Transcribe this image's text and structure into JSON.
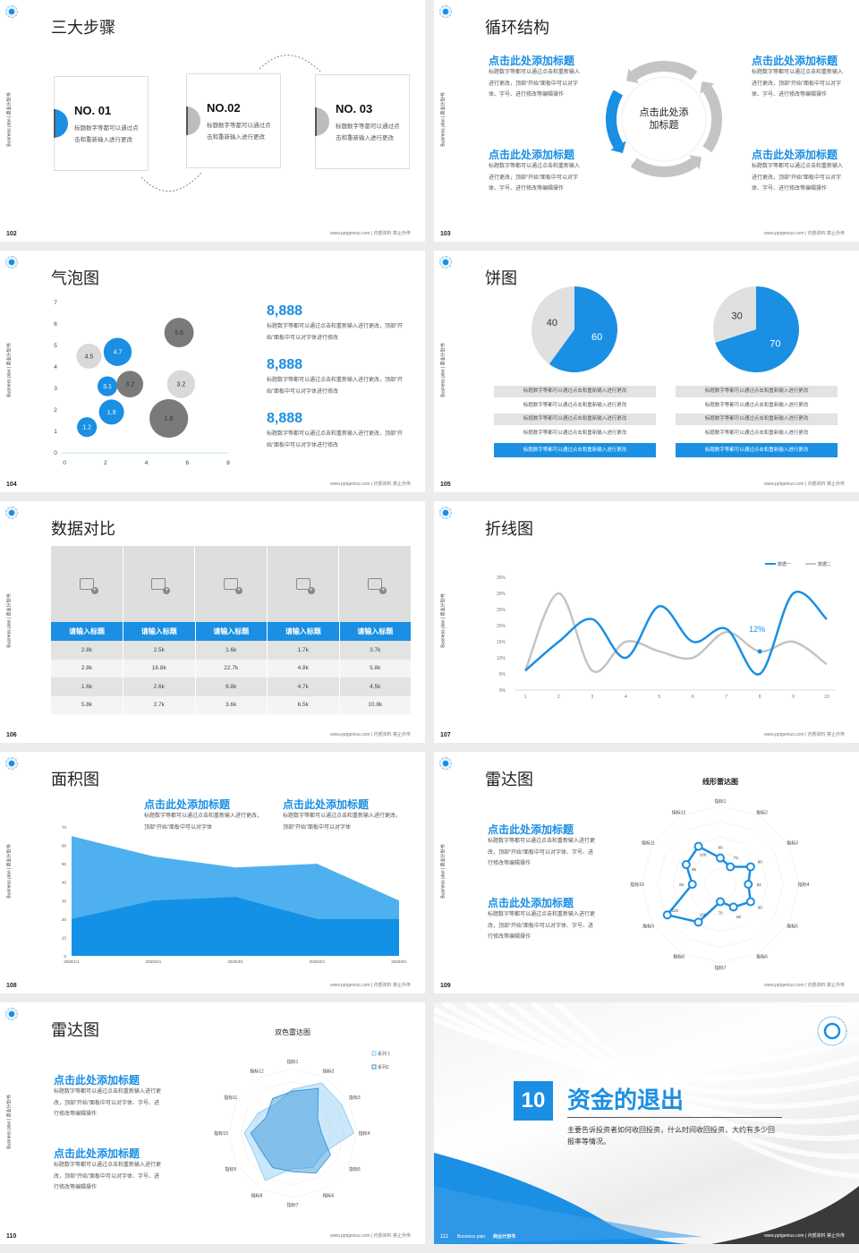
{
  "common": {
    "vertical_label": "Business plan | 商业计划书",
    "footer": "www.pptgenius.com | 内部资料 禁止外传"
  },
  "colors": {
    "accent": "#1a8fe3",
    "light_blue": "#4fb0ef",
    "gray": "#c4c4c4",
    "dark_gray": "#7a7a7a",
    "background": "#ececec"
  },
  "slides": [
    {
      "page": "102",
      "title": "三大步骤",
      "steps": [
        {
          "label": "NO. 01",
          "text": "标题数字等都可以通过点击和重新输入进行更改"
        },
        {
          "label": "NO.02",
          "text": "标题数字等都可以通过点击和重新输入进行更改"
        },
        {
          "label": "NO. 03",
          "text": "标题数字等都可以通过点击和重新输入进行更改"
        }
      ]
    },
    {
      "page": "103",
      "title": "循环结构",
      "center": "点击此处添加标题",
      "blocks": [
        {
          "heading": "点击此处添加标题",
          "text": "标题数字等都可以通过点击和重新输入进行更改，顶部“开始”面板中可以对字体、字号、进行修改等编辑操作"
        },
        {
          "heading": "点击此处添加标题",
          "text": "标题数字等都可以通过点击和重新输入进行更改，顶部“开始”面板中可以对字体、字号、进行修改等编辑操作"
        },
        {
          "heading": "点击此处添加标题",
          "text": "标题数字等都可以通过点击和重新输入进行更改，顶部“开始”面板中可以对字体、字号、进行修改等编辑操作"
        },
        {
          "heading": "点击此处添加标题",
          "text": "标题数字等都可以通过点击和重新输入进行更改，顶部“开始”面板中可以对字体、字号、进行修改等编辑操作"
        }
      ]
    },
    {
      "page": "104",
      "title": "气泡图",
      "stats": [
        {
          "value": "8,888",
          "text": "标题数字等都可以通过点击和重新输入进行更改，顶部“开始”面板中可以对字体进行修改"
        },
        {
          "value": "8,888",
          "text": "标题数字等都可以通过点击和重新输入进行更改，顶部“开始”面板中可以对字体进行修改"
        },
        {
          "value": "8,888",
          "text": "标题数字等都可以通过点击和重新输入进行更改，顶部“开始”面板中可以对字体进行修改"
        }
      ]
    },
    {
      "page": "105",
      "title": "饼图",
      "lists": [
        [
          "标题数字等都可以通过点击和重新输入进行更改",
          "标题数字等都可以通过点击和重新输入进行更改",
          "标题数字等都可以通过点击和重新输入进行更改",
          "标题数字等都可以通过点击和重新输入进行更改",
          "标题数字等都可以通过点击和重新输入进行更改"
        ],
        [
          "标题数字等都可以通过点击和重新输入进行更改",
          "标题数字等都可以通过点击和重新输入进行更改",
          "标题数字等都可以通过点击和重新输入进行更改",
          "标题数字等都可以通过点击和重新输入进行更改",
          "标题数字等都可以通过点击和重新输入进行更改"
        ]
      ]
    },
    {
      "page": "106",
      "title": "数据对比"
    },
    {
      "page": "107",
      "title": "折线图"
    },
    {
      "page": "108",
      "title": "面积图",
      "blocks": [
        {
          "heading": "点击此处添加标题",
          "text": "标题数字等都可以通过点击和重新输入进行更改，顶部“开始”面板中可以对字体"
        },
        {
          "heading": "点击此处添加标题",
          "text": "标题数字等都可以通过点击和重新输入进行更改，顶部“开始”面板中可以对字体"
        }
      ]
    },
    {
      "page": "109",
      "title": "雷达图",
      "blocks": [
        {
          "heading": "点击此处添加标题",
          "text": "标题数字等都可以通过点击和重新输入进行更改，顶部“开始”面板中可以对字体、字号、进行修改等编辑操作"
        },
        {
          "heading": "点击此处添加标题",
          "text": "标题数字等都可以通过点击和重新输入进行更改，顶部“开始”面板中可以对字体、字号、进行修改等编辑操作"
        }
      ]
    },
    {
      "page": "110",
      "title": "雷达图",
      "blocks": [
        {
          "heading": "点击此处添加标题",
          "text": "标题数字等都可以通过点击和重新输入进行更改，顶部“开始”面板中可以对字体、字号、进行修改等编辑操作"
        },
        {
          "heading": "点击此处添加标题",
          "text": "标题数字等都可以通过点击和重新输入进行更改，顶部“开始”面板中可以对字体、字号、进行修改等编辑操作"
        }
      ]
    },
    {
      "page": "111",
      "section_number": "10",
      "title": "资金的退出",
      "description": "主要告诉投资者如何收回投资，什么时间收回投资，大约有多少回报率等情况。",
      "footer_left": "Business plan",
      "footer_brand": "商业计划书"
    }
  ],
  "chart_data": [
    {
      "type": "scatter",
      "subtype": "bubble",
      "xlim": [
        0,
        8
      ],
      "ylim": [
        0,
        7
      ],
      "xticks": [
        "0",
        "2",
        "4",
        "6",
        "8"
      ],
      "yticks": [
        "0",
        "1",
        "2",
        "3",
        "4",
        "5",
        "6",
        "7"
      ],
      "points": [
        {
          "x": 1.1,
          "y": 1.2,
          "size": 2.5,
          "label": "1.2",
          "color": "#1a8fe3"
        },
        {
          "x": 2.3,
          "y": 1.9,
          "size": 4,
          "label": "1.9",
          "color": "#1a8fe3"
        },
        {
          "x": 2.1,
          "y": 3.1,
          "size": 2.5,
          "label": "3.1",
          "color": "#1a8fe3"
        },
        {
          "x": 2.6,
          "y": 4.7,
          "size": 5,
          "label": "4.7",
          "color": "#1a8fe3"
        },
        {
          "x": 1.2,
          "y": 4.5,
          "size": 4,
          "label": "4.5",
          "color": "#d9d9d9"
        },
        {
          "x": 3.2,
          "y": 3.2,
          "size": 4.5,
          "label": "3.2",
          "color": "#7a7a7a"
        },
        {
          "x": 5.7,
          "y": 3.2,
          "size": 5,
          "label": "3.2",
          "color": "#d9d9d9"
        },
        {
          "x": 5.6,
          "y": 5.6,
          "size": 5.5,
          "label": "5.6",
          "color": "#7a7a7a"
        },
        {
          "x": 5.1,
          "y": 1.6,
          "size": 9.5,
          "label": "1.6",
          "color": "#7a7a7a"
        }
      ]
    },
    {
      "type": "pie",
      "values": [
        60,
        40
      ],
      "labels": [
        "60",
        "40"
      ],
      "colors": [
        "#1a8fe3",
        "#e0e0e0"
      ]
    },
    {
      "type": "pie",
      "values": [
        70,
        30
      ],
      "labels": [
        "70",
        "30"
      ],
      "colors": [
        "#1a8fe3",
        "#e0e0e0"
      ]
    },
    {
      "type": "table",
      "headers": [
        "请输入标题",
        "请输入标题",
        "请输入标题",
        "请输入标题",
        "请输入标题"
      ],
      "rows": [
        [
          "2.8k",
          "2.5k",
          "1.6k",
          "1.7k",
          "3.7k"
        ],
        [
          "2.8k",
          "16.8k",
          "22.7k",
          "4.8k",
          "5.8k"
        ],
        [
          "1.6k",
          "2.6k",
          "6.8k",
          "4.7k",
          "4.5k"
        ],
        [
          "5.8k",
          "2.7k",
          "3.6k",
          "6.5k",
          "10.8k"
        ]
      ]
    },
    {
      "type": "line",
      "smooth": true,
      "x": [
        1,
        2,
        3,
        4,
        5,
        6,
        7,
        8,
        9,
        10
      ],
      "yticks": [
        "0%",
        "5%",
        "10%",
        "15%",
        "20%",
        "25%",
        "30%",
        "35%"
      ],
      "ylim": [
        0,
        35
      ],
      "series": [
        {
          "name": "数据一",
          "color": "#1a8fe3",
          "values": [
            6,
            15,
            22,
            10,
            26,
            15,
            19,
            5,
            30,
            22
          ]
        },
        {
          "name": "数据二",
          "color": "#c4c4c4",
          "values": [
            6,
            30,
            6,
            15,
            12,
            10,
            18,
            12,
            15,
            8
          ]
        }
      ],
      "annotation": {
        "x": 8,
        "y": 12,
        "text": "12%"
      },
      "legend": "top-right"
    },
    {
      "type": "area",
      "categories": [
        "2020/1/1",
        "2020/2/1",
        "2020/3/1",
        "2020/4/1",
        "2020/5/1"
      ],
      "ylim": [
        0,
        70
      ],
      "yticks": [
        "0",
        "10",
        "20",
        "30",
        "40",
        "50",
        "60",
        "70"
      ],
      "series": [
        {
          "color": "#4fb0ef",
          "values": [
            65,
            54,
            48,
            50,
            30
          ]
        },
        {
          "color": "#1291e6",
          "values": [
            20,
            30,
            32,
            20,
            20
          ]
        }
      ]
    },
    {
      "type": "radar",
      "title": "线形雷达图",
      "axes": [
        "指标1",
        "指标2",
        "指标3",
        "指标4",
        "指标5",
        "指标6",
        "指标7",
        "指标8",
        "指标9",
        "指标10",
        "指标11",
        "指标12"
      ],
      "range": [
        50,
        140
      ],
      "values": [
        80,
        73,
        90,
        82,
        90,
        80,
        70,
        100,
        120,
        82,
        95,
        100
      ],
      "labels": [
        "80",
        "73",
        "90",
        "82",
        "90",
        "80",
        "70",
        "100",
        "120",
        "82",
        "95",
        "100"
      ]
    },
    {
      "type": "radar",
      "title": "双色雷达图",
      "filled": true,
      "range": [
        0,
        100
      ],
      "legend": "top-right",
      "axes": [
        "指标1",
        "指标2",
        "指标3",
        "指标4",
        "指标5",
        "指标6",
        "指标7",
        "指标8",
        "指标9",
        "指标10",
        "指标11",
        "指标12"
      ],
      "series": [
        {
          "name": "系列 1",
          "color": "#7cc6f2",
          "values": [
            68,
            90,
            88,
            95,
            58,
            62,
            55,
            85,
            68,
            75,
            62,
            52
          ]
        },
        {
          "name": "系列2",
          "color": "#2a8fd8",
          "values": [
            65,
            80,
            45,
            45,
            68,
            72,
            60,
            62,
            56,
            65,
            48,
            62
          ]
        }
      ]
    }
  ]
}
